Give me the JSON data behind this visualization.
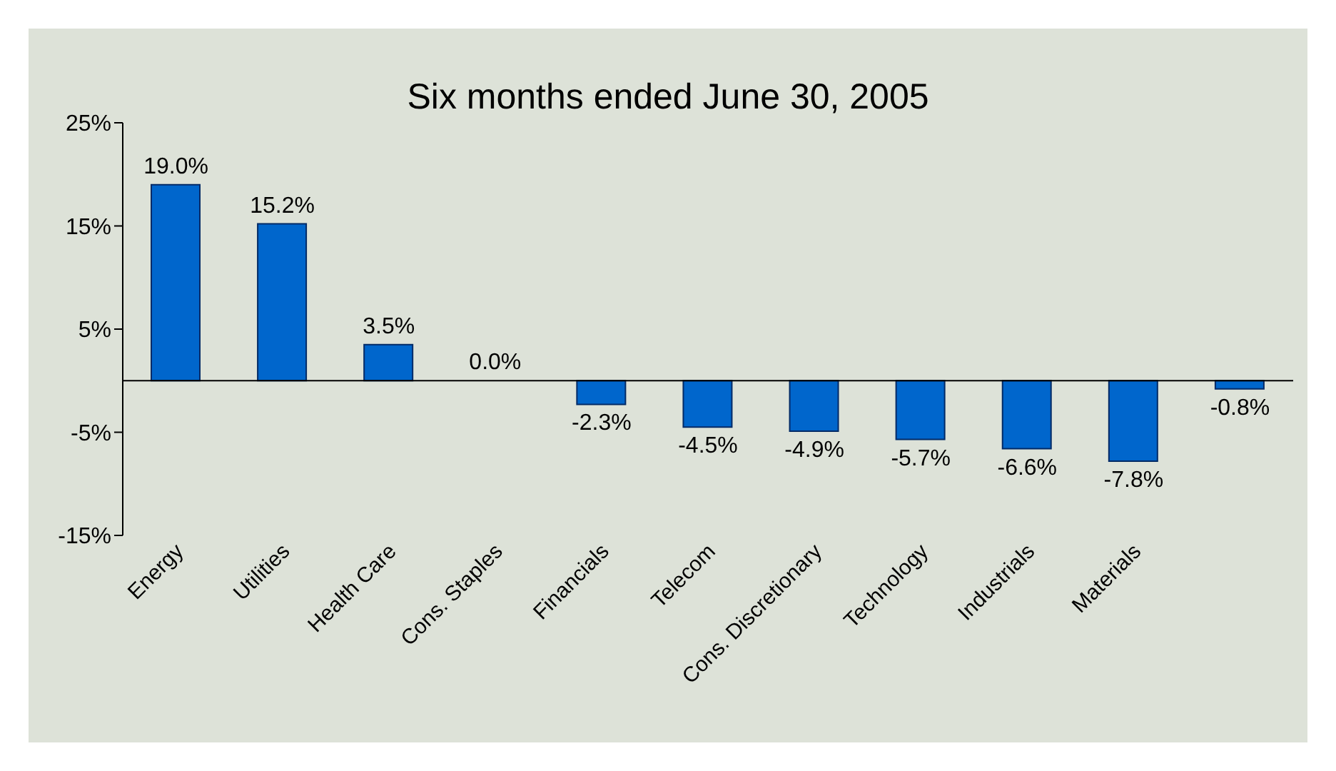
{
  "chart_data": {
    "type": "bar",
    "title": "Six months ended June 30, 2005",
    "categories": [
      "Energy",
      "Utilities",
      "Health Care",
      "Cons. Staples",
      "Financials",
      "Telecom",
      "Cons. Discretionary",
      "Technology",
      "Industrials",
      "Materials",
      null
    ],
    "values": [
      19.0,
      15.2,
      3.5,
      0.0,
      -2.3,
      -4.5,
      -4.9,
      -5.7,
      -6.6,
      -7.8,
      -0.8
    ],
    "value_labels": [
      "19.0%",
      "15.2%",
      "3.5%",
      "0.0%",
      "-2.3%",
      "-4.5%",
      "-4.9%",
      "-5.7%",
      "-6.6%",
      "-7.8%",
      "-0.8%"
    ],
    "color": "#0066cc",
    "ylim": [
      -15,
      25
    ],
    "yticks": [
      {
        "value": -15,
        "label": "-15%"
      },
      {
        "value": -5,
        "label": "-5%"
      },
      {
        "value": 5,
        "label": "5%"
      },
      {
        "value": 15,
        "label": "15%"
      },
      {
        "value": 25,
        "label": "25%"
      }
    ],
    "grid": false,
    "legend": false
  }
}
